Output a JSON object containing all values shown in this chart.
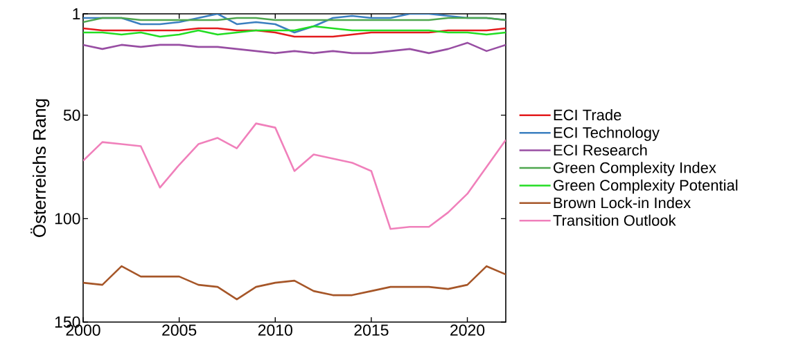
{
  "chart_data": {
    "type": "line",
    "ylabel": "Österreichs Rang",
    "x": [
      2000,
      2001,
      2002,
      2003,
      2004,
      2005,
      2006,
      2007,
      2008,
      2009,
      2010,
      2011,
      2012,
      2013,
      2014,
      2015,
      2016,
      2017,
      2018,
      2019,
      2020,
      2021,
      2022
    ],
    "xlim": [
      2000,
      2022
    ],
    "xticks": [
      2000,
      2005,
      2010,
      2015,
      2020
    ],
    "ylim": [
      150,
      1
    ],
    "yticks": [
      1,
      50,
      100,
      150
    ],
    "grid": false,
    "legend": "right",
    "line_style": "solid",
    "marker": "none",
    "series": [
      {
        "name": "ECI Trade",
        "color": "#e31a1c",
        "values": [
          8,
          9,
          9,
          9,
          9,
          9,
          8,
          8,
          9,
          9,
          10,
          12,
          12,
          12,
          11,
          10,
          10,
          10,
          10,
          9,
          9,
          9,
          8
        ]
      },
      {
        "name": "ECI Technology",
        "color": "#3b7fc0",
        "values": [
          3,
          3,
          3,
          6,
          6,
          5,
          3,
          1,
          6,
          5,
          6,
          10,
          7,
          3,
          2,
          3,
          3,
          1,
          1,
          2,
          3,
          3,
          4
        ]
      },
      {
        "name": "ECI Research",
        "color": "#984ea3",
        "values": [
          16,
          18,
          16,
          17,
          16,
          16,
          17,
          17,
          18,
          19,
          20,
          19,
          20,
          19,
          20,
          20,
          19,
          18,
          20,
          18,
          15,
          19,
          16
        ]
      },
      {
        "name": "Green Complexity Index",
        "color": "#4ea64e",
        "values": [
          5,
          3,
          3,
          4,
          4,
          4,
          4,
          4,
          3,
          3,
          4,
          4,
          4,
          4,
          4,
          4,
          4,
          4,
          4,
          3,
          3,
          3,
          4
        ]
      },
      {
        "name": "Green Complexity Potential",
        "color": "#22dd22",
        "values": [
          10,
          10,
          11,
          10,
          12,
          11,
          9,
          11,
          10,
          9,
          9,
          9,
          7,
          8,
          9,
          9,
          9,
          9,
          9,
          10,
          10,
          11,
          10
        ]
      },
      {
        "name": "Brown Lock-in Index",
        "color": "#a65628",
        "values": [
          131,
          132,
          123,
          128,
          128,
          128,
          132,
          133,
          139,
          133,
          131,
          130,
          135,
          137,
          137,
          135,
          133,
          133,
          133,
          134,
          132,
          123,
          127
        ]
      },
      {
        "name": "Transition Outlook",
        "color": "#f080bb",
        "values": [
          72,
          63,
          64,
          65,
          85,
          74,
          64,
          61,
          66,
          54,
          56,
          77,
          69,
          71,
          73,
          77,
          105,
          104,
          104,
          97,
          88,
          75,
          62
        ]
      }
    ]
  }
}
